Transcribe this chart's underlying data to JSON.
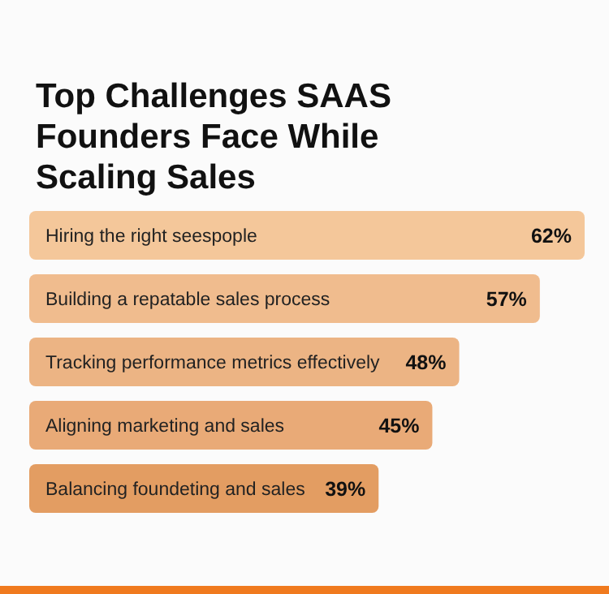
{
  "chart_data": {
    "type": "bar",
    "orientation": "horizontal",
    "title": "Top Challenges SAAS Founders Face While Scaling Sales",
    "categories": [
      "Hiring the right seespople",
      "Building a repatable sales process",
      "Tracking performance metrics effectively",
      "Aligning marketing and sales",
      "Balancing foundeting and sales"
    ],
    "values": [
      62,
      57,
      48,
      45,
      39
    ],
    "value_labels": [
      "62%",
      "57%",
      "48%",
      "45%",
      "39%"
    ],
    "colors": [
      "#f4c79a",
      "#f0bc8e",
      "#ecb484",
      "#e9aa77",
      "#e39d62"
    ],
    "xlim": [
      0,
      62
    ]
  }
}
